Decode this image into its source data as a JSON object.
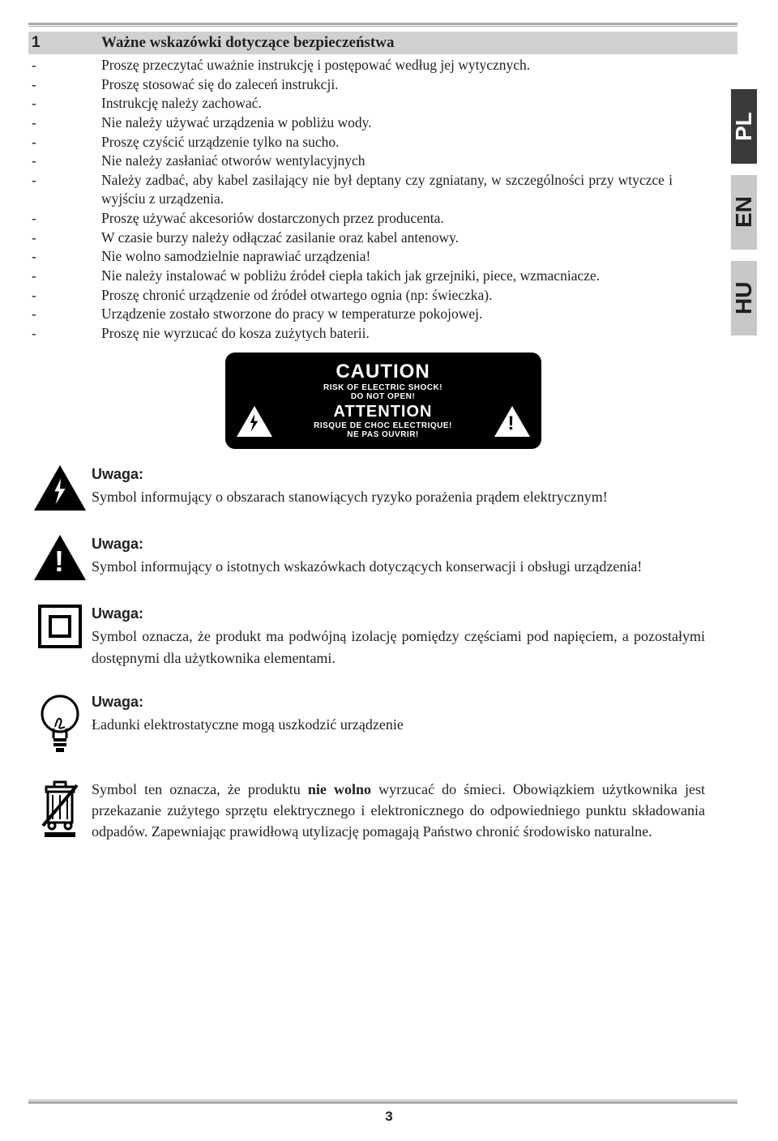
{
  "colors": {
    "text": "#231f20",
    "header_bg": "#d0d1d2",
    "tab_light": "#c7c8ca",
    "tab_dark": "#3a3a3a",
    "rule": "#a7a8aa",
    "black": "#000000",
    "white": "#ffffff"
  },
  "typography": {
    "body_font": "Georgia, serif",
    "label_font": "Arial, sans-serif",
    "body_size_pt": 13,
    "title_size_pt": 14
  },
  "lang_tabs": [
    "PL",
    "EN",
    "HU"
  ],
  "header": {
    "num": "1",
    "title": "Ważne wskazówki dotyczące bezpieczeństwa"
  },
  "bullets": [
    "Proszę przeczytać uważnie instrukcję i postępować według jej wytycznych.",
    "Proszę stosować się do zaleceń instrukcji.",
    "Instrukcję należy zachować.",
    "Nie należy używać urządzenia w pobliżu wody.",
    "Proszę czyścić urządzenie tylko na sucho.",
    "Nie należy zasłaniać otworów wentylacyjnych",
    "Należy zadbać, aby kabel zasilający nie był deptany czy zgniatany, w szczególności przy wtyczce i wyjściu z urządzenia.",
    "Proszę używać akcesoriów dostarczonych przez producenta.",
    "W czasie burzy należy odłączać zasilanie oraz kabel antenowy.",
    "Nie wolno samodzielnie naprawiać urządzenia!",
    "Nie należy instalować w pobliżu źródeł ciepła takich jak grzejniki, piece, wzmacniacze.",
    "Proszę chronić urządzenie od źródeł otwartego ognia (np: świeczka).",
    "Urządzenie zostało stworzone do pracy w temperaturze pokojowej.",
    "Proszę nie wyrzucać do kosza zużytych baterii."
  ],
  "caution": {
    "title1": "CAUTION",
    "sub1a": "RISK OF ELECTRIC SHOCK!",
    "sub1b": "DO NOT OPEN!",
    "title2": "ATTENTION",
    "sub2a": "RISQUE DE CHOC ELECTRIQUE!",
    "sub2b": "NE PAS OUVRIR!"
  },
  "notices": [
    {
      "icon": "bolt-triangle",
      "title": "Uwaga:",
      "text": "Symbol informujący o obszarach stanowiących ryzyko porażenia prądem elektrycznym!"
    },
    {
      "icon": "excl-triangle",
      "title": "Uwaga:",
      "text": "Symbol informujący o istotnych wskazówkach dotyczących konserwacji i obsługi urządzenia!"
    },
    {
      "icon": "double-square",
      "title": "Uwaga:",
      "text": "Symbol oznacza, że produkt ma podwójną izolację pomiędzy częściami pod napięciem, a pozostałymi dostępnymi dla użytkownika elementami."
    },
    {
      "icon": "bulb",
      "title": "Uwaga:",
      "text": "Ładunki elektrostatyczne mogą uszkodzić urządzenie"
    },
    {
      "icon": "weee",
      "title": "",
      "text_html": "Symbol ten oznacza, że produktu <b>nie wolno</b> wyrzucać do śmieci. Obowiązkiem użytkownika jest przekazanie zużytego sprzętu elektrycznego i elektronicznego do odpowiedniego punktu składowania odpadów. Zapewniając prawidłową utylizację pomagają Państwo chronić środowisko naturalne."
    }
  ],
  "page_number": "3"
}
